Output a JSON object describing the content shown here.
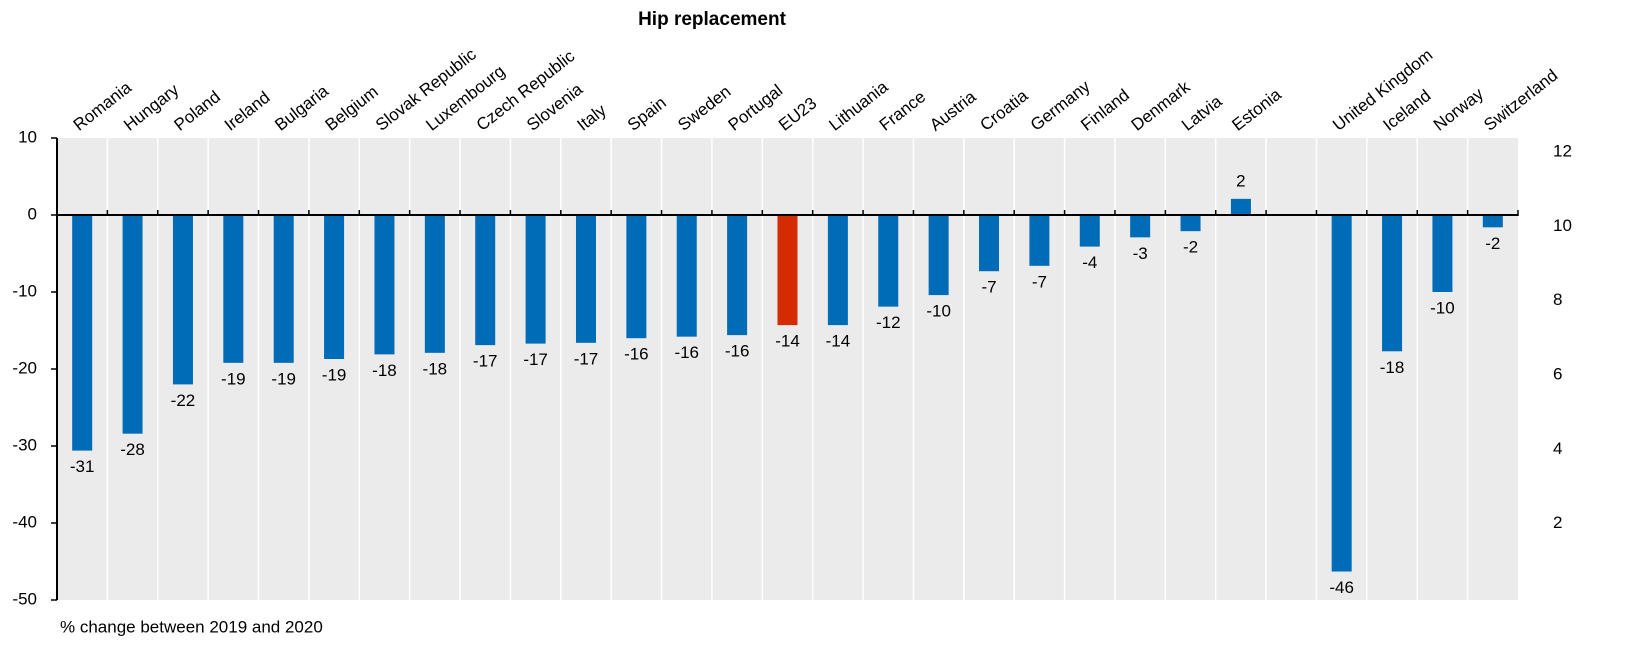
{
  "chart_data": {
    "type": "bar",
    "title": "Hip replacement",
    "footnote": "% change between 2019 and 2020",
    "categories": [
      "Romania",
      "Hungary",
      "Poland",
      "Ireland",
      "Bulgaria",
      "Belgium",
      "Slovak Republic",
      "Luxembourg",
      "Czech Republic",
      "Slovenia",
      "Italy",
      "Spain",
      "Sweden",
      "Portugal",
      "EU23",
      "Lithuania",
      "France",
      "Austria",
      "Croatia",
      "Germany",
      "Finland",
      "Denmark",
      "Latvia",
      "Estonia",
      null,
      "United Kingdom",
      "Iceland",
      "Norway",
      "Switzerland"
    ],
    "values": [
      -30.6,
      -28.4,
      -22,
      -19.2,
      -19.2,
      -18.7,
      -18.1,
      -17.9,
      -16.9,
      -16.7,
      -16.6,
      -16,
      -15.8,
      -15.6,
      -14.3,
      -14.3,
      -11.9,
      -10.4,
      -7.3,
      -6.6,
      -4.1,
      -2.9,
      -2.1,
      2.1,
      null,
      -46.3,
      -17.7,
      -10,
      -1.6
    ],
    "value_labels": [
      "-31",
      "-28",
      "-22",
      "-19",
      "-19",
      "-19",
      "-18",
      "-18",
      "-17",
      "-17",
      "-17",
      "-16",
      "-16",
      "-16",
      "-14",
      "-14",
      "-12",
      "-10",
      "-7",
      "-7",
      "-4",
      "-3",
      "-2",
      "2",
      null,
      "-46",
      "-18",
      "-10",
      "-2"
    ],
    "colors": [
      "#006bb6",
      "#006bb6",
      "#006bb6",
      "#006bb6",
      "#006bb6",
      "#006bb6",
      "#006bb6",
      "#006bb6",
      "#006bb6",
      "#006bb6",
      "#006bb6",
      "#006bb6",
      "#006bb6",
      "#006bb6",
      "#d52b00",
      "#006bb6",
      "#006bb6",
      "#006bb6",
      "#006bb6",
      "#006bb6",
      "#006bb6",
      "#006bb6",
      "#006bb6",
      "#006bb6",
      null,
      "#006bb6",
      "#006bb6",
      "#006bb6",
      "#006bb6"
    ],
    "ylim": [
      -50,
      10
    ],
    "yticks": [
      -50,
      -40,
      -30,
      -20,
      -10,
      0,
      10
    ],
    "y2lim": [
      0,
      12
    ],
    "y2ticks": [
      2,
      4,
      6,
      8,
      10,
      12
    ],
    "grid": true
  }
}
